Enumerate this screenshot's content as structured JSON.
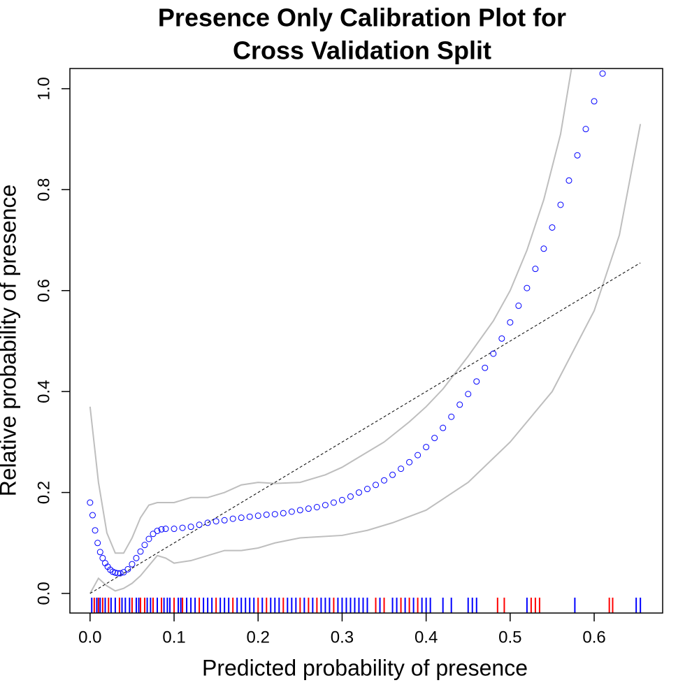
{
  "chart_data": {
    "type": "calibration",
    "title": [
      "Presence Only Calibration Plot for",
      "Cross Validation Split"
    ],
    "x_label": "Predicted probability of presence",
    "y_label": "Relative probability of presence",
    "xlim": [
      -0.024,
      0.6815
    ],
    "ylim": [
      -0.0388,
      1.04
    ],
    "xticks": [
      {
        "value": 0,
        "label": "0.0"
      },
      0.1,
      0.2,
      0.3,
      0.4,
      0.5,
      0.6
    ],
    "yticks": [
      {
        "value": 0,
        "label": "0.0"
      },
      0.2,
      0.4,
      0.6,
      0.8,
      {
        "value": 1,
        "label": "1.0"
      }
    ],
    "series": [
      {
        "kind": "line",
        "color": "#bebebe",
        "x": [
          0,
          0.01,
          0.02,
          0.03,
          0.04,
          0.05,
          0.06,
          0.07,
          0.08,
          0.1,
          0.12,
          0.14,
          0.16,
          0.18,
          0.2,
          0.22,
          0.25,
          0.28,
          0.3,
          0.32,
          0.35,
          0.38,
          0.4,
          0.42,
          0.45,
          0.48,
          0.5,
          0.52,
          0.54,
          0.56,
          0.573
        ],
        "values": [
          0.37,
          0.22,
          0.12,
          0.08,
          0.08,
          0.11,
          0.15,
          0.175,
          0.18,
          0.18,
          0.19,
          0.19,
          0.2,
          0.215,
          0.22,
          0.218,
          0.22,
          0.235,
          0.25,
          0.27,
          0.3,
          0.34,
          0.37,
          0.405,
          0.47,
          0.54,
          0.6,
          0.68,
          0.78,
          0.91,
          1.04
        ]
      },
      {
        "kind": "line",
        "color": "#bebebe",
        "x": [
          0,
          0.01,
          0.02,
          0.03,
          0.04,
          0.05,
          0.06,
          0.07,
          0.08,
          0.09,
          0.1,
          0.12,
          0.14,
          0.16,
          0.18,
          0.2,
          0.22,
          0.25,
          0.3,
          0.33,
          0.36,
          0.4,
          0.45,
          0.5,
          0.55,
          0.6,
          0.63,
          0.655
        ],
        "values": [
          0,
          0.03,
          0.015,
          0.005,
          0.01,
          0.02,
          0.035,
          0.055,
          0.075,
          0.07,
          0.06,
          0.065,
          0.075,
          0.085,
          0.085,
          0.09,
          0.1,
          0.11,
          0.115,
          0.125,
          0.14,
          0.165,
          0.22,
          0.3,
          0.4,
          0.56,
          0.71,
          0.93
        ]
      },
      {
        "kind": "line",
        "color": "#000000",
        "dash": true,
        "x": [
          0,
          0.655
        ],
        "values": [
          0,
          0.655
        ]
      },
      {
        "kind": "points",
        "color": "#0000ff",
        "x": [
          0,
          0.003,
          0.006,
          0.009,
          0.012,
          0.015,
          0.018,
          0.021,
          0.024,
          0.027,
          0.03,
          0.033,
          0.036,
          0.04,
          0.045,
          0.05,
          0.055,
          0.06,
          0.065,
          0.07,
          0.075,
          0.08,
          0.085,
          0.09,
          0.1,
          0.11,
          0.12,
          0.13,
          0.14,
          0.15,
          0.16,
          0.17,
          0.18,
          0.19,
          0.2,
          0.21,
          0.22,
          0.23,
          0.24,
          0.25,
          0.26,
          0.27,
          0.28,
          0.29,
          0.3,
          0.31,
          0.32,
          0.33,
          0.34,
          0.35,
          0.36,
          0.37,
          0.38,
          0.39,
          0.4,
          0.41,
          0.42,
          0.43,
          0.44,
          0.45,
          0.46,
          0.47,
          0.48,
          0.49,
          0.5,
          0.51,
          0.52,
          0.53,
          0.54,
          0.55,
          0.56,
          0.57,
          0.58,
          0.59,
          0.6,
          0.61
        ],
        "values": [
          0.18,
          0.155,
          0.125,
          0.1,
          0.082,
          0.07,
          0.06,
          0.053,
          0.047,
          0.043,
          0.041,
          0.04,
          0.04,
          0.042,
          0.048,
          0.058,
          0.07,
          0.083,
          0.096,
          0.108,
          0.118,
          0.124,
          0.127,
          0.128,
          0.128,
          0.13,
          0.132,
          0.136,
          0.14,
          0.143,
          0.145,
          0.148,
          0.15,
          0.152,
          0.154,
          0.156,
          0.157,
          0.159,
          0.162,
          0.165,
          0.168,
          0.171,
          0.175,
          0.18,
          0.185,
          0.192,
          0.2,
          0.207,
          0.215,
          0.224,
          0.235,
          0.247,
          0.26,
          0.274,
          0.29,
          0.308,
          0.328,
          0.35,
          0.374,
          0.395,
          0.42,
          0.447,
          0.475,
          0.505,
          0.537,
          0.57,
          0.605,
          0.643,
          0.683,
          0.725,
          0.77,
          0.818,
          0.868,
          0.92,
          0.975,
          1.03
        ]
      }
    ],
    "rug": [
      {
        "color": "#0000ff",
        "values": [
          0.002,
          0.008,
          0.012,
          0.018,
          0.025,
          0.03,
          0.038,
          0.042,
          0.047,
          0.055,
          0.058,
          0.068,
          0.072,
          0.08,
          0.088,
          0.092,
          0.095,
          0.105,
          0.108,
          0.115,
          0.12,
          0.125,
          0.135,
          0.14,
          0.145,
          0.155,
          0.16,
          0.165,
          0.175,
          0.18,
          0.185,
          0.19,
          0.195,
          0.205,
          0.215,
          0.22,
          0.225,
          0.235,
          0.24,
          0.245,
          0.255,
          0.265,
          0.275,
          0.28,
          0.285,
          0.295,
          0.3,
          0.305,
          0.31,
          0.315,
          0.32,
          0.325,
          0.33,
          0.345,
          0.36,
          0.365,
          0.375,
          0.385,
          0.395,
          0.4,
          0.405,
          0.42,
          0.43,
          0.45,
          0.455,
          0.46,
          0.52,
          0.577,
          0.65,
          0.655
        ]
      },
      {
        "color": "#ff0000",
        "values": [
          0.005,
          0.01,
          0.015,
          0.022,
          0.035,
          0.05,
          0.06,
          0.065,
          0.075,
          0.085,
          0.1,
          0.11,
          0.13,
          0.15,
          0.17,
          0.2,
          0.21,
          0.23,
          0.25,
          0.26,
          0.27,
          0.29,
          0.34,
          0.35,
          0.37,
          0.38,
          0.39,
          0.485,
          0.493,
          0.525,
          0.53,
          0.535,
          0.618,
          0.622
        ]
      }
    ]
  }
}
